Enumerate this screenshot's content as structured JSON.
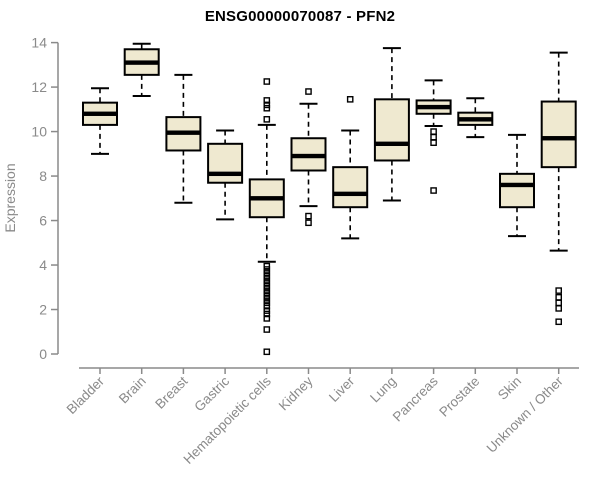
{
  "title": "ENSG00000070087 - PFN2",
  "ylabel": "Expression",
  "colors": {
    "box_fill": "#efe9d0",
    "box_border": "#000000",
    "median": "#000000",
    "whisker": "#000000",
    "axis": "#8a8a8a",
    "tick_label": "#8a8a8a",
    "title_text": "#000000",
    "background": "#ffffff"
  },
  "chart_data": {
    "type": "boxplot",
    "title": "ENSG00000070087 - PFN2",
    "xlabel": "",
    "ylabel": "Expression",
    "ylim": [
      0,
      14
    ],
    "yticks": [
      0,
      2,
      4,
      6,
      8,
      10,
      12,
      14
    ],
    "grid": false,
    "legend": "none",
    "categories": [
      "Bladder",
      "Brain",
      "Breast",
      "Gastric",
      "Hematopoietic cells",
      "Kidney",
      "Liver",
      "Lung",
      "Pancreas",
      "Prostate",
      "Skin",
      "Unknown / Other"
    ],
    "series": [
      {
        "name": "Bladder",
        "whisker_low": 9.0,
        "q1": 10.3,
        "median": 10.8,
        "q3": 11.3,
        "whisker_high": 11.95,
        "outliers": []
      },
      {
        "name": "Brain",
        "whisker_low": 11.6,
        "q1": 12.55,
        "median": 13.1,
        "q3": 13.7,
        "whisker_high": 13.95,
        "outliers": []
      },
      {
        "name": "Breast",
        "whisker_low": 6.8,
        "q1": 9.15,
        "median": 9.95,
        "q3": 10.65,
        "whisker_high": 12.55,
        "outliers": []
      },
      {
        "name": "Gastric",
        "whisker_low": 6.05,
        "q1": 7.7,
        "median": 8.1,
        "q3": 9.45,
        "whisker_high": 10.05,
        "outliers": []
      },
      {
        "name": "Hematopoietic cells",
        "whisker_low": 4.15,
        "q1": 6.15,
        "median": 7.0,
        "q3": 7.85,
        "whisker_high": 10.3,
        "outliers": [
          12.25,
          11.4,
          11.2,
          11.05,
          10.55,
          3.95,
          3.8,
          3.65,
          3.5,
          3.35,
          3.2,
          3.05,
          2.9,
          2.75,
          2.6,
          2.45,
          2.3,
          2.15,
          1.95,
          1.8,
          1.6,
          1.1,
          0.1
        ]
      },
      {
        "name": "Kidney",
        "whisker_low": 6.65,
        "q1": 8.25,
        "median": 8.9,
        "q3": 9.7,
        "whisker_high": 11.25,
        "outliers": [
          11.8,
          6.2,
          5.9
        ]
      },
      {
        "name": "Liver",
        "whisker_low": 5.2,
        "q1": 6.6,
        "median": 7.2,
        "q3": 8.4,
        "whisker_high": 10.05,
        "outliers": [
          11.45
        ]
      },
      {
        "name": "Lung",
        "whisker_low": 6.9,
        "q1": 8.7,
        "median": 9.45,
        "q3": 11.45,
        "whisker_high": 13.75,
        "outliers": []
      },
      {
        "name": "Pancreas",
        "whisker_low": 10.25,
        "q1": 10.8,
        "median": 11.1,
        "q3": 11.4,
        "whisker_high": 12.3,
        "outliers": [
          10.0,
          9.75,
          9.5,
          7.35
        ]
      },
      {
        "name": "Prostate",
        "whisker_low": 9.75,
        "q1": 10.3,
        "median": 10.55,
        "q3": 10.85,
        "whisker_high": 11.5,
        "outliers": []
      },
      {
        "name": "Skin",
        "whisker_low": 5.3,
        "q1": 6.6,
        "median": 7.6,
        "q3": 8.1,
        "whisker_high": 9.85,
        "outliers": []
      },
      {
        "name": "Unknown / Other",
        "whisker_low": 4.65,
        "q1": 8.4,
        "median": 9.7,
        "q3": 11.35,
        "whisker_high": 13.55,
        "outliers": [
          2.85,
          2.55,
          2.3,
          2.05,
          1.45
        ]
      }
    ]
  }
}
